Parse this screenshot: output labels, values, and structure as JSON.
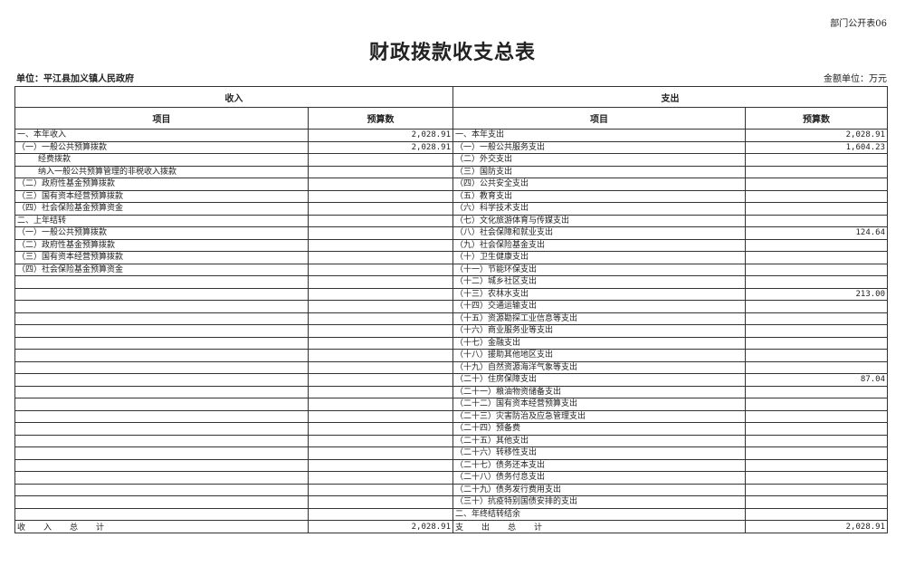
{
  "header": {
    "form_code": "部门公开表06",
    "title": "财政拨款收支总表",
    "unit_label": "单位：平江县加义镇人民政府",
    "money_unit": "金额单位：万元"
  },
  "table": {
    "income_header": "收入",
    "expense_header": "支出",
    "col_item": "项目",
    "col_budget": "预算数",
    "rows": [
      {
        "left": "一、本年收入",
        "left_value": "2,028.91",
        "right": "一、本年支出",
        "right_value": "2,028.91"
      },
      {
        "left": "（一）一般公共预算拨款",
        "left_value": "2,028.91",
        "right": "（一）一般公共服务支出",
        "right_value": "1,604.23"
      },
      {
        "left": "经费拨款",
        "left_indent": true,
        "left_value": "",
        "right": "（二）外交支出",
        "right_value": ""
      },
      {
        "left": "纳入一般公共预算管理的非税收入拨款",
        "left_indent": true,
        "left_value": "",
        "right": "（三）国防支出",
        "right_value": ""
      },
      {
        "left": "（二）政府性基金预算拨款",
        "left_value": "",
        "right": "（四）公共安全支出",
        "right_value": ""
      },
      {
        "left": "（三）国有资本经营预算拨款",
        "left_value": "",
        "right": "（五）教育支出",
        "right_value": ""
      },
      {
        "left": "（四）社会保险基金预算资金",
        "left_value": "",
        "right": "（六）科学技术支出",
        "right_value": ""
      },
      {
        "left": "二、上年结转",
        "left_value": "",
        "right": "（七）文化旅游体育与传媒支出",
        "right_value": ""
      },
      {
        "left": "（一）一般公共预算拨款",
        "left_value": "",
        "right": "（八）社会保障和就业支出",
        "right_value": "124.64"
      },
      {
        "left": "（二）政府性基金预算拨款",
        "left_value": "",
        "right": "（九）社会保险基金支出",
        "right_value": ""
      },
      {
        "left": "（三）国有资本经营预算拨款",
        "left_value": "",
        "right": "（十）卫生健康支出",
        "right_value": ""
      },
      {
        "left": "（四）社会保险基金预算资金",
        "left_value": "",
        "right": "（十一）节能环保支出",
        "right_value": ""
      },
      {
        "left": "",
        "left_value": "",
        "right": "（十二）城乡社区支出",
        "right_value": ""
      },
      {
        "left": "",
        "left_value": "",
        "right": "（十三）农林水支出",
        "right_value": "213.00"
      },
      {
        "left": "",
        "left_value": "",
        "right": "（十四）交通运输支出",
        "right_value": ""
      },
      {
        "left": "",
        "left_value": "",
        "right": "（十五）资源勘探工业信息等支出",
        "right_value": ""
      },
      {
        "left": "",
        "left_value": "",
        "right": "（十六）商业服务业等支出",
        "right_value": ""
      },
      {
        "left": "",
        "left_value": "",
        "right": "（十七）金融支出",
        "right_value": ""
      },
      {
        "left": "",
        "left_value": "",
        "right": "（十八）援助其他地区支出",
        "right_value": ""
      },
      {
        "left": "",
        "left_value": "",
        "right": "（十九）自然资源海洋气象等支出",
        "right_value": ""
      },
      {
        "left": "",
        "left_value": "",
        "right": "（二十）住房保障支出",
        "right_value": "87.04"
      },
      {
        "left": "",
        "left_value": "",
        "right": "（二十一）粮油物资储备支出",
        "right_value": ""
      },
      {
        "left": "",
        "left_value": "",
        "right": "（二十二）国有资本经营预算支出",
        "right_value": ""
      },
      {
        "left": "",
        "left_value": "",
        "right": "（二十三）灾害防治及应急管理支出",
        "right_value": ""
      },
      {
        "left": "",
        "left_value": "",
        "right": "（二十四）预备费",
        "right_value": ""
      },
      {
        "left": "",
        "left_value": "",
        "right": "（二十五）其他支出",
        "right_value": ""
      },
      {
        "left": "",
        "left_value": "",
        "right": "（二十六）转移性支出",
        "right_value": ""
      },
      {
        "left": "",
        "left_value": "",
        "right": "（二十七）债务还本支出",
        "right_value": ""
      },
      {
        "left": "",
        "left_value": "",
        "right": "（二十八）债务付息支出",
        "right_value": ""
      },
      {
        "left": "",
        "left_value": "",
        "right": "（二十九）债务发行费用支出",
        "right_value": ""
      },
      {
        "left": "",
        "left_value": "",
        "right": "（三十）抗疫特别国债安排的支出",
        "right_value": ""
      },
      {
        "left": "",
        "left_value": "",
        "right": "二、年终结转结余",
        "right_value": ""
      }
    ],
    "total": {
      "left": "收入总计",
      "left_value": "2,028.91",
      "right": "支出总计",
      "right_value": "2,028.91"
    }
  }
}
